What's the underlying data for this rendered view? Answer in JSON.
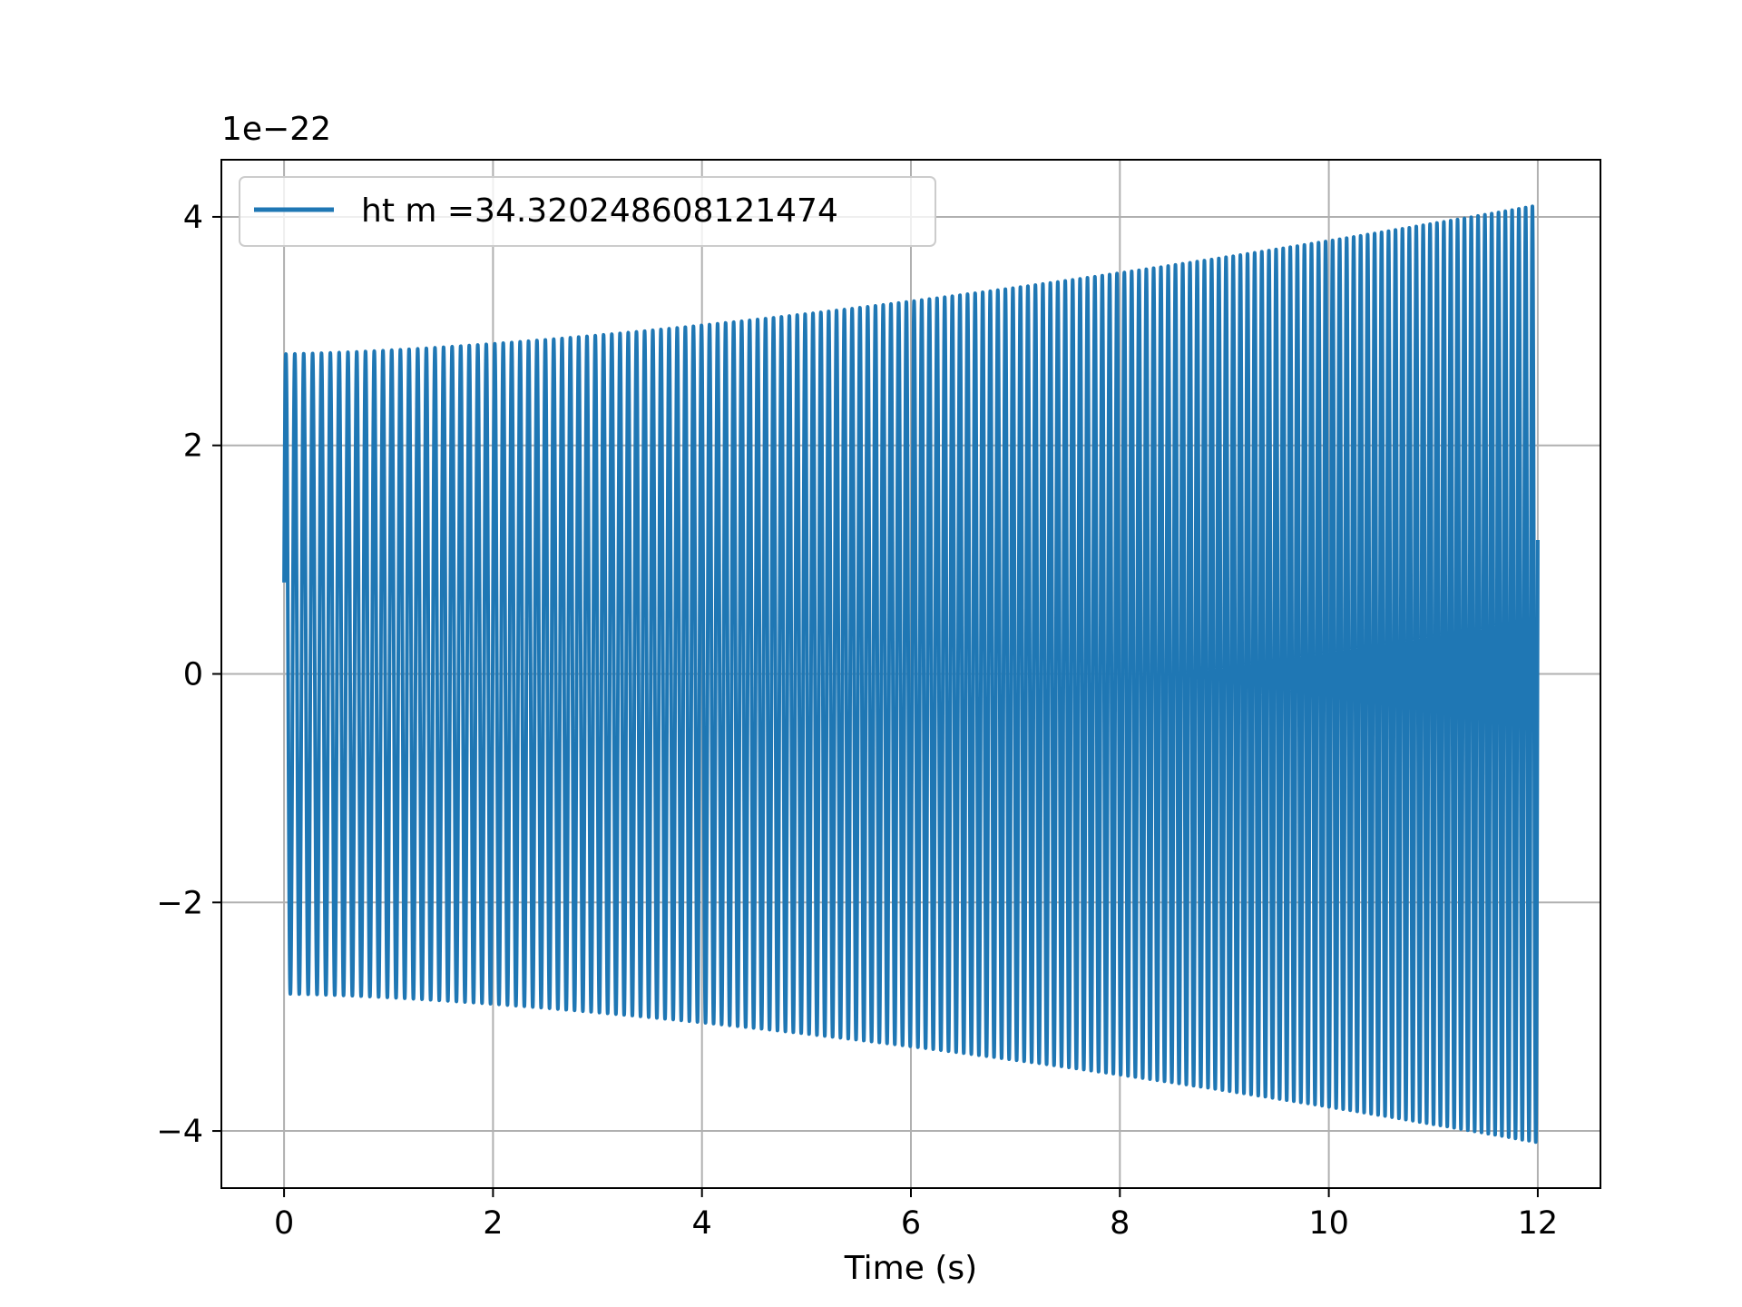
{
  "chart_data": {
    "type": "line",
    "title": "",
    "xlabel": "Time (s)",
    "ylabel": "",
    "y_offset_label": "1e−22",
    "xlim": [
      -0.6,
      12.6
    ],
    "ylim": [
      -4.5,
      4.5
    ],
    "x_ticks": [
      0,
      2,
      4,
      6,
      8,
      10,
      12
    ],
    "x_tick_labels": [
      "0",
      "2",
      "4",
      "6",
      "8",
      "10",
      "12"
    ],
    "y_ticks": [
      -4,
      -2,
      0,
      2,
      4
    ],
    "y_tick_labels": [
      "−4",
      "−2",
      "0",
      "2",
      "4"
    ],
    "grid": true,
    "legend_position": "upper-left",
    "colors": {
      "series": "#1f77b4",
      "grid": "#b0b0b0",
      "axes": "#000000"
    },
    "series": [
      {
        "name": "ht m =34.320248608121474",
        "x_start": 0,
        "x_end": 12,
        "cycles": 163,
        "amplitude_start": 2.8,
        "amplitude_end": 4.1,
        "initial_value": 0.8
      }
    ]
  }
}
